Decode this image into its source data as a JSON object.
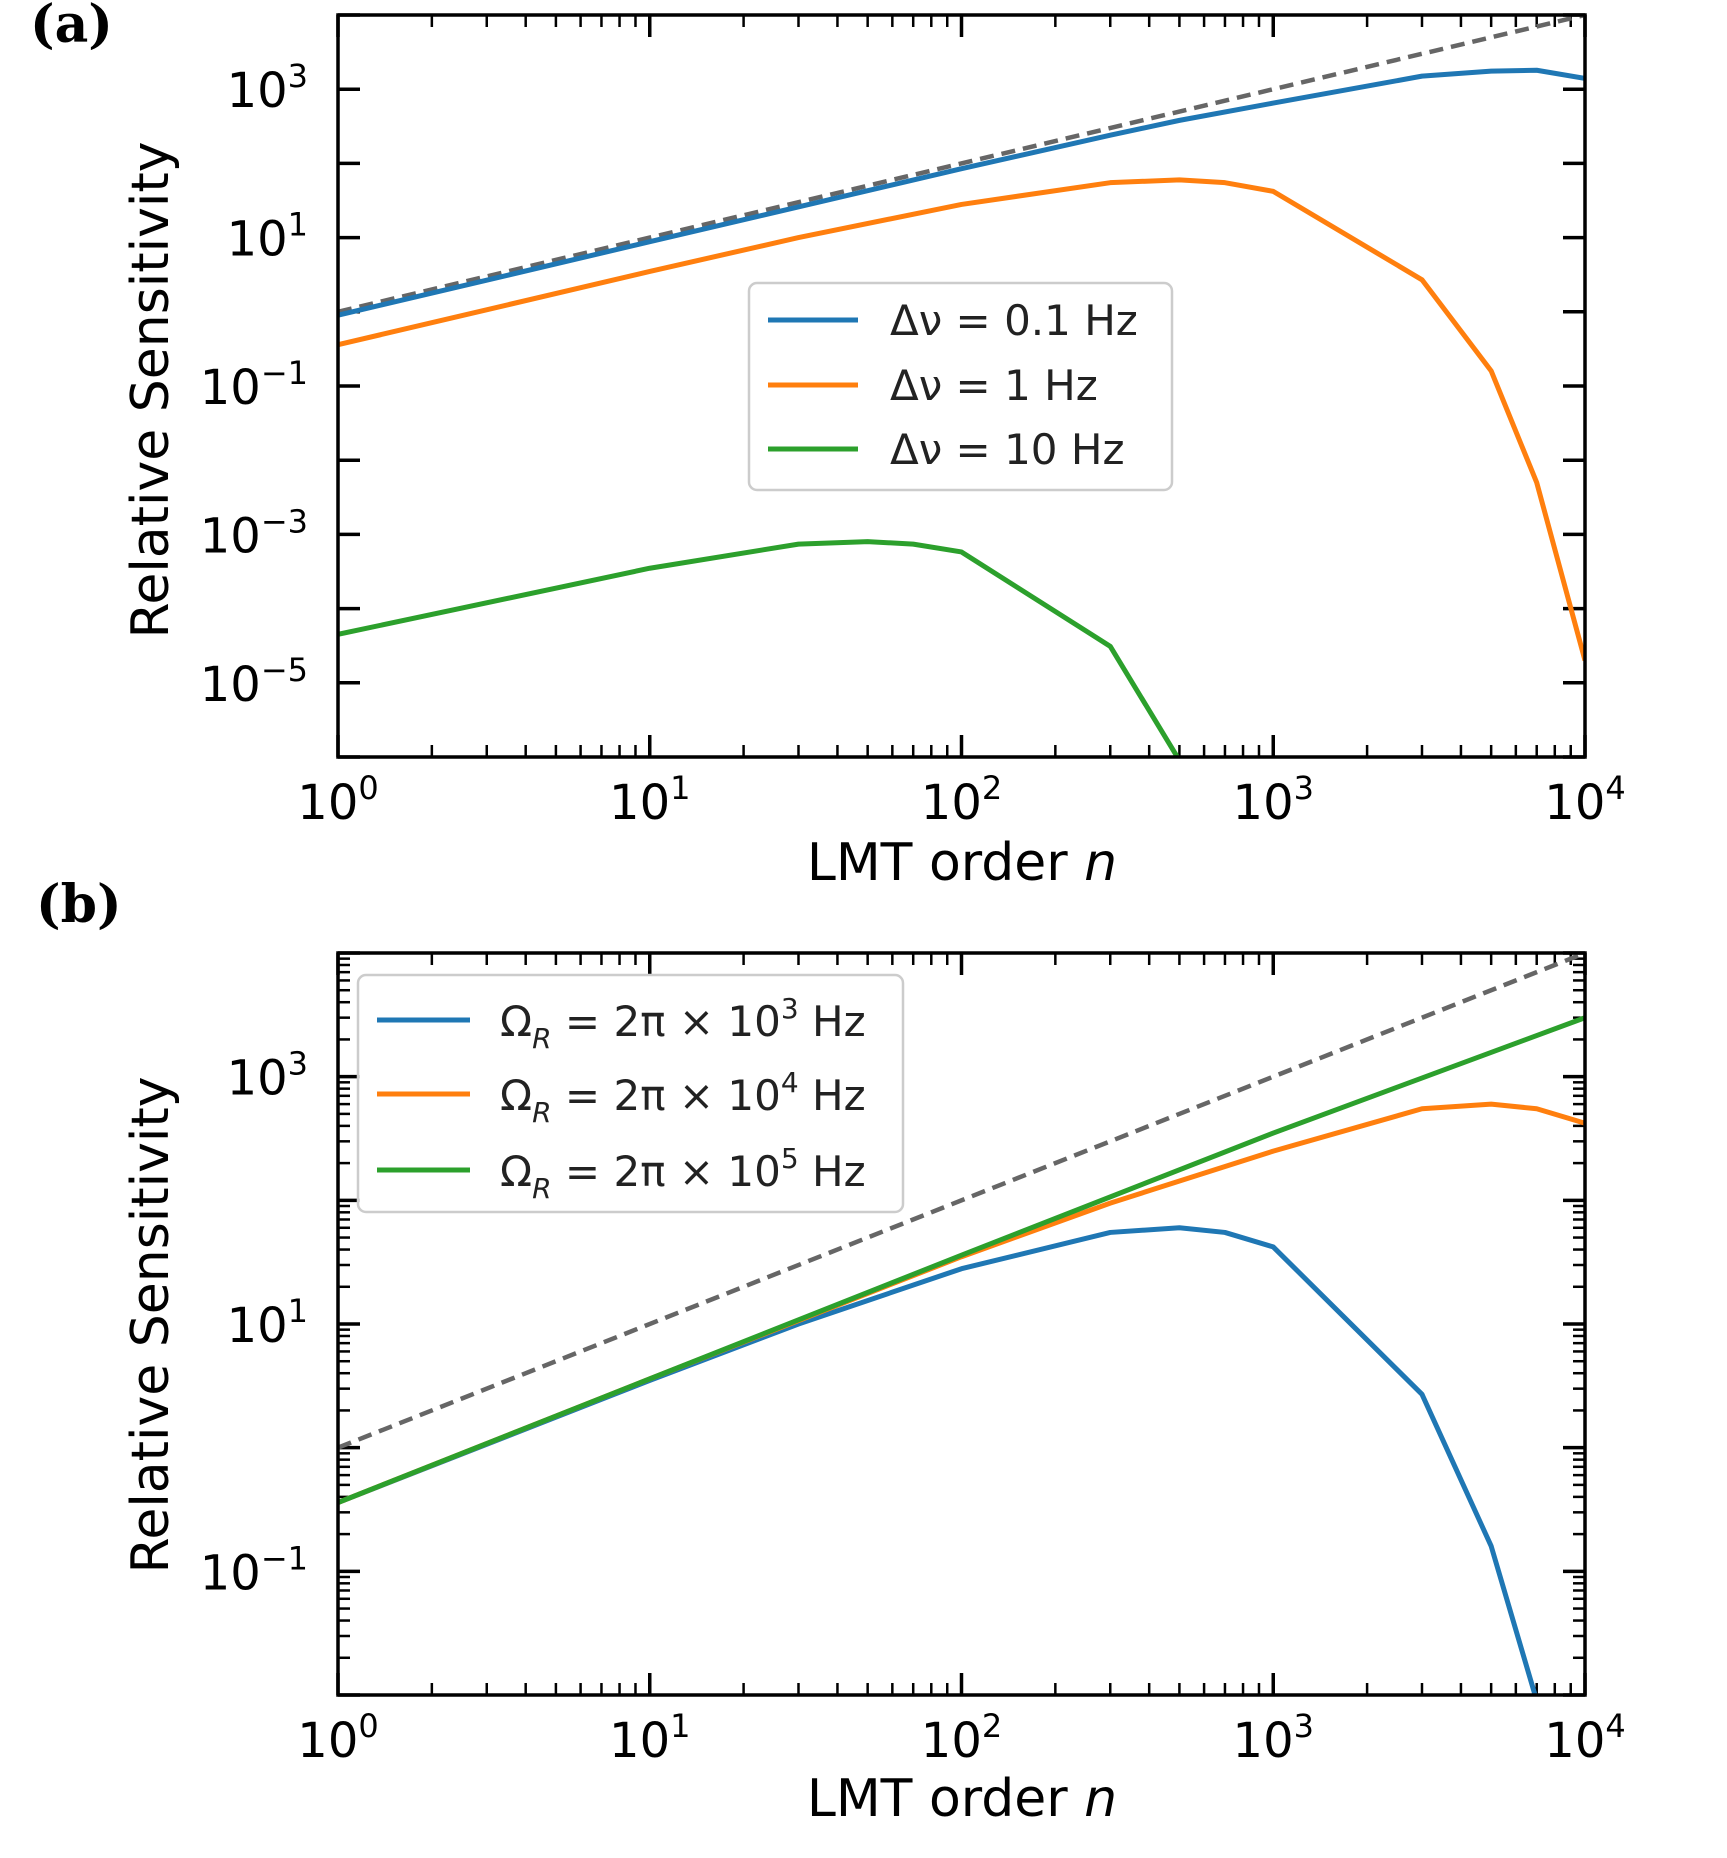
{
  "chart_data": [
    {
      "panel": "(a)",
      "type": "line",
      "xlabel": "LMT order n",
      "ylabel": "Relative Sensitivity",
      "xscale": "log",
      "yscale": "log",
      "xlim": [
        1,
        10000
      ],
      "ylim": [
        1e-06,
        10000
      ],
      "x_ticks": [
        1,
        10,
        100,
        1000,
        10000
      ],
      "y_ticks": [
        1e-05,
        0.001,
        0.1,
        10,
        1000
      ],
      "legend_position": "center-right",
      "reference_line": {
        "style": "dashed",
        "color": "#666666",
        "x": [
          1,
          10000
        ],
        "y": [
          1,
          10000
        ]
      },
      "series": [
        {
          "name": "Δν = 0.1 Hz",
          "legend_text": "Δν = 0.1 Hz",
          "color": "#1f77b4",
          "x": [
            1,
            10,
            100,
            300,
            500,
            1000,
            3000,
            5000,
            7000,
            10000
          ],
          "y": [
            0.9,
            8.8,
            85,
            240,
            380,
            650,
            1500,
            1750,
            1800,
            1400
          ]
        },
        {
          "name": "Δν = 1 Hz",
          "legend_text": "Δν = 1 Hz",
          "color": "#ff7f0e",
          "x": [
            1,
            10,
            30,
            100,
            300,
            500,
            700,
            1000,
            3000,
            5000,
            7000,
            10000
          ],
          "y": [
            0.36,
            3.5,
            10,
            28,
            55,
            60,
            55,
            42,
            2.7,
            0.16,
            0.005,
            2e-05
          ]
        },
        {
          "name": "Δν = 10 Hz",
          "legend_text": "Δν = 10 Hz",
          "color": "#2ca02c",
          "x": [
            1,
            10,
            30,
            50,
            70,
            100,
            300,
            500
          ],
          "y": [
            4.5e-05,
            0.00035,
            0.00074,
            0.0008,
            0.00074,
            0.00058,
            3.1e-05,
            9e-07
          ]
        }
      ]
    },
    {
      "panel": "(b)",
      "type": "line",
      "xlabel": "LMT order n",
      "ylabel": "Relative Sensitivity",
      "xscale": "log",
      "yscale": "log",
      "xlim": [
        1,
        10000
      ],
      "ylim": [
        0.01,
        10000
      ],
      "x_ticks": [
        1,
        10,
        100,
        1000,
        10000
      ],
      "y_ticks": [
        0.1,
        10,
        1000
      ],
      "legend_position": "upper-left",
      "reference_line": {
        "style": "dashed",
        "color": "#666666",
        "x": [
          1,
          10000
        ],
        "y": [
          1,
          10000
        ]
      },
      "series": [
        {
          "name": "Ω_R = 2π × 10^3 Hz",
          "legend_text": "Ω",
          "legend_sub": "R",
          "legend_mid": " = 2π × 10",
          "legend_sup": "3",
          "legend_end": " Hz",
          "color": "#1f77b4",
          "x": [
            1,
            10,
            30,
            100,
            300,
            500,
            700,
            1000,
            3000,
            5000,
            7000
          ],
          "y": [
            0.36,
            3.5,
            10,
            28,
            55,
            60,
            55,
            42,
            2.7,
            0.16,
            0.009
          ]
        },
        {
          "name": "Ω_R = 2π × 10^4 Hz",
          "legend_text": "Ω",
          "legend_sub": "R",
          "legend_mid": " = 2π × 10",
          "legend_sup": "4",
          "legend_end": " Hz",
          "color": "#ff7f0e",
          "x": [
            1,
            10,
            100,
            300,
            1000,
            3000,
            5000,
            7000,
            10000
          ],
          "y": [
            0.36,
            3.6,
            35,
            95,
            250,
            550,
            600,
            550,
            420
          ]
        },
        {
          "name": "Ω_R = 2π × 10^5 Hz",
          "legend_text": "Ω",
          "legend_sub": "R",
          "legend_mid": " = 2π × 10",
          "legend_sup": "5",
          "legend_end": " Hz",
          "color": "#2ca02c",
          "x": [
            1,
            10,
            100,
            1000,
            10000
          ],
          "y": [
            0.36,
            3.6,
            36,
            350,
            3000
          ]
        }
      ]
    }
  ]
}
